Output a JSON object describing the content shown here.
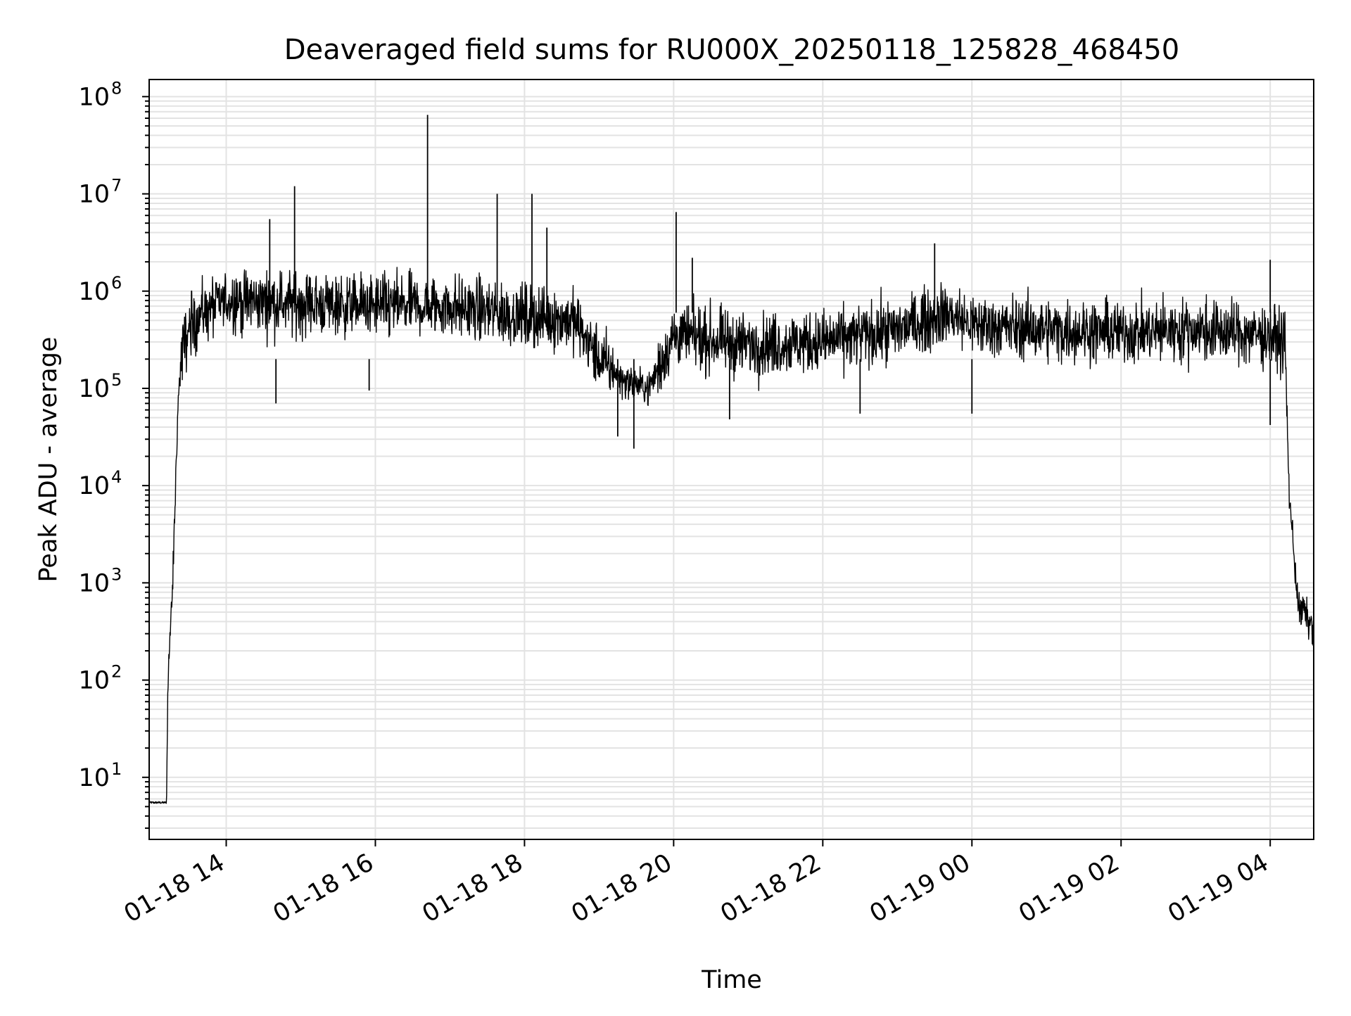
{
  "chart_data": {
    "type": "line",
    "title": "Deaveraged field sums for RU000X_20250118_125828_468450",
    "xlabel": "Time",
    "ylabel": "Peak ADU - average",
    "yscale": "log",
    "xlim": [
      "2025-01-18 12:58",
      "2025-01-19 04:35"
    ],
    "ylim": [
      2.3,
      150000000
    ],
    "grid": true,
    "legend": "none",
    "x_ticks": [
      {
        "value": "2025-01-18 14:00",
        "label": "01-18 14"
      },
      {
        "value": "2025-01-18 16:00",
        "label": "01-18 16"
      },
      {
        "value": "2025-01-18 18:00",
        "label": "01-18 18"
      },
      {
        "value": "2025-01-18 20:00",
        "label": "01-18 20"
      },
      {
        "value": "2025-01-18 22:00",
        "label": "01-18 22"
      },
      {
        "value": "2025-01-19 00:00",
        "label": "01-19 00"
      },
      {
        "value": "2025-01-19 02:00",
        "label": "01-19 02"
      },
      {
        "value": "2025-01-19 04:00",
        "label": "01-19 04"
      }
    ],
    "y_ticks": [
      {
        "value": 10,
        "base": "10",
        "exp": "1"
      },
      {
        "value": 100,
        "base": "10",
        "exp": "2"
      },
      {
        "value": 1000,
        "base": "10",
        "exp": "3"
      },
      {
        "value": 10000,
        "base": "10",
        "exp": "4"
      },
      {
        "value": 100000,
        "base": "10",
        "exp": "5"
      },
      {
        "value": 1000000,
        "base": "10",
        "exp": "6"
      },
      {
        "value": 10000000,
        "base": "10",
        "exp": "7"
      },
      {
        "value": 100000000,
        "base": "10",
        "exp": "8"
      }
    ],
    "series": [
      {
        "color": "#000000",
        "points": [
          [
            "2025-01-18 12:58",
            5.5
          ],
          [
            "2025-01-18 13:10",
            5.5
          ],
          [
            "2025-01-18 13:12",
            5.5
          ],
          [
            "2025-01-18 13:13",
            100
          ],
          [
            "2025-01-18 13:15",
            300
          ],
          [
            "2025-01-18 13:17",
            1000
          ],
          [
            "2025-01-18 13:19",
            8000
          ],
          [
            "2025-01-18 13:21",
            60000
          ],
          [
            "2025-01-18 13:23",
            150000
          ],
          [
            "2025-01-18 13:25",
            250000
          ],
          [
            "2025-01-18 13:30",
            400000
          ],
          [
            "2025-01-18 13:40",
            600000
          ],
          [
            "2025-01-18 14:00",
            800000
          ],
          [
            "2025-01-18 15:00",
            750000
          ],
          [
            "2025-01-18 16:00",
            700000
          ],
          [
            "2025-01-18 17:00",
            700000
          ],
          [
            "2025-01-18 18:00",
            550000
          ],
          [
            "2025-01-18 18:40",
            500000
          ],
          [
            "2025-01-18 19:00",
            200000
          ],
          [
            "2025-01-18 19:20",
            120000
          ],
          [
            "2025-01-18 19:40",
            100000
          ],
          [
            "2025-01-18 20:00",
            350000
          ],
          [
            "2025-01-18 21:00",
            280000
          ],
          [
            "2025-01-18 22:00",
            300000
          ],
          [
            "2025-01-18 23:00",
            400000
          ],
          [
            "2025-01-18 23:40",
            600000
          ],
          [
            "2025-01-19 00:00",
            450000
          ],
          [
            "2025-01-19 01:00",
            400000
          ],
          [
            "2025-01-19 02:00",
            380000
          ],
          [
            "2025-01-19 03:00",
            400000
          ],
          [
            "2025-01-19 04:00",
            350000
          ],
          [
            "2025-01-19 04:12",
            300000
          ],
          [
            "2025-01-19 04:15",
            10000
          ],
          [
            "2025-01-19 04:18",
            3000
          ],
          [
            "2025-01-19 04:21",
            1000
          ],
          [
            "2025-01-19 04:24",
            450
          ],
          [
            "2025-01-19 04:27",
            550
          ],
          [
            "2025-01-19 04:30",
            400
          ],
          [
            "2025-01-19 04:35",
            350
          ]
        ],
        "spikes": [
          [
            "2025-01-18 14:35",
            5500000
          ],
          [
            "2025-01-18 14:55",
            12000000
          ],
          [
            "2025-01-18 16:42",
            65000000
          ],
          [
            "2025-01-18 17:38",
            10000000
          ],
          [
            "2025-01-18 18:06",
            10000000
          ],
          [
            "2025-01-18 18:18",
            4500000
          ],
          [
            "2025-01-18 20:02",
            6500000
          ],
          [
            "2025-01-18 20:15",
            2200000
          ],
          [
            "2025-01-18 23:30",
            3100000
          ],
          [
            "2025-01-19 04:00",
            2100000
          ]
        ],
        "dips": [
          [
            "2025-01-18 14:40",
            70000
          ],
          [
            "2025-01-18 15:55",
            95000
          ],
          [
            "2025-01-18 19:15",
            32000
          ],
          [
            "2025-01-18 19:28",
            24000
          ],
          [
            "2025-01-18 20:45",
            48000
          ],
          [
            "2025-01-18 22:30",
            55000
          ],
          [
            "2025-01-19 00:00",
            55000
          ],
          [
            "2025-01-19 04:00",
            42000
          ]
        ]
      }
    ]
  }
}
